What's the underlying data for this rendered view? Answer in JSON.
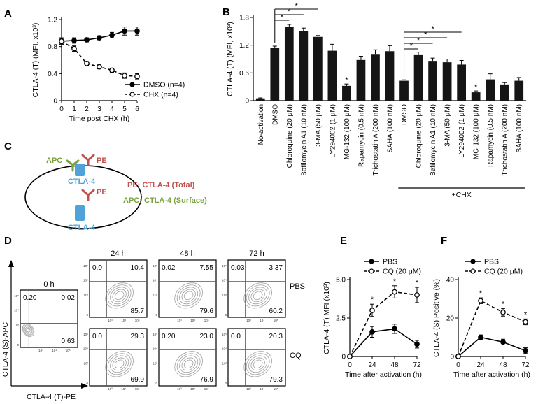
{
  "panels": {
    "A": "A",
    "B": "B",
    "C": "C",
    "D": "D",
    "E": "E",
    "F": "F"
  },
  "colors": {
    "ink": "#000000",
    "bar": "#151515",
    "apc": "#7aa23e",
    "pe": "#c0504d",
    "receptor": "#4fa3d9",
    "contour": "#a0a0a0"
  },
  "chart_data": [
    {
      "id": "A",
      "type": "line",
      "title": "",
      "xlabel": "Time post CHX (h)",
      "ylabel": "CTLA-4 (T) (MFI, x10³)",
      "x": [
        0,
        1,
        2,
        3,
        4,
        5,
        6
      ],
      "xticks": [
        "0",
        "1",
        "2",
        "3",
        "4",
        "5",
        "6"
      ],
      "yticks": [
        "0",
        "0.4",
        "0.8",
        "1.2"
      ],
      "ylim": [
        0,
        1.2
      ],
      "series": [
        {
          "name": "DMSO (n=4)",
          "marker": "filled",
          "dash": false,
          "values": [
            0.88,
            0.89,
            0.9,
            0.93,
            0.97,
            1.03,
            1.03
          ],
          "err": [
            0.05,
            0.04,
            0.03,
            0.03,
            0.04,
            0.06,
            0.06
          ]
        },
        {
          "name": "CHX (n=4)",
          "marker": "open",
          "dash": true,
          "values": [
            0.88,
            0.77,
            0.55,
            0.5,
            0.45,
            0.37,
            0.36
          ],
          "err": [
            0.04,
            0.04,
            0.03,
            0.03,
            0.03,
            0.04,
            0.04
          ]
        }
      ],
      "legend": "bottom-right"
    },
    {
      "id": "B",
      "type": "bar",
      "title": "",
      "ylabel": "CTLA-4 (T) (MFI, x10³)",
      "categories": [
        "No-activation",
        "DMSO",
        "Chloroquine (20 μM)",
        "Bafilomycin A1 (10 nM)",
        "3-MA (50 μM)",
        "LY294002 (1 μM)",
        "MG-132 (100 μM)",
        "Rapamycin (0.5 nM)",
        "Trichostatin A (200 nM)",
        "SAHA (100 nM)",
        "DMSO",
        "Chloroquine (20 μM)",
        "Bafilomycin A1 (10 nM)",
        "3-MA (50 μM)",
        "LY294002 (1 μM)",
        "MG-132 (100 μM)",
        "Rapamycin (0.5 nM)",
        "Trichostatin A (200 nM)",
        "SAHA (100 nM)"
      ],
      "values": [
        0.05,
        1.14,
        1.6,
        1.5,
        1.38,
        1.08,
        0.32,
        0.88,
        1.01,
        1.07,
        0.43,
        1.0,
        0.86,
        0.83,
        0.78,
        0.18,
        0.46,
        0.35,
        0.43
      ],
      "err": [
        0.01,
        0.04,
        0.05,
        0.07,
        0.03,
        0.14,
        0.04,
        0.08,
        0.09,
        0.12,
        0.02,
        0.05,
        0.06,
        0.07,
        0.09,
        0.03,
        0.12,
        0.04,
        0.07
      ],
      "yticks": [
        "0",
        "0.6",
        "1.2",
        "1.8"
      ],
      "ylim": [
        0,
        1.8
      ],
      "star": "*",
      "group_label": "+CHX",
      "group_start": 10
    },
    {
      "id": "E",
      "type": "line",
      "xlabel": "Time after activation (h)",
      "ylabel": "CTLA-4 (T) MFI (x10³)",
      "x": [
        0,
        24,
        48,
        72
      ],
      "xticks": [
        "0",
        "24",
        "48",
        "72"
      ],
      "yticks": [
        "0",
        "2.5",
        "5.0"
      ],
      "ylim": [
        0,
        5
      ],
      "series": [
        {
          "name": "PBS",
          "marker": "filled",
          "dash": false,
          "values": [
            0,
            1.6,
            1.8,
            0.8
          ],
          "err": [
            0,
            0.35,
            0.3,
            0.25
          ]
        },
        {
          "name": "CQ (20 μM)",
          "marker": "open",
          "dash": true,
          "values": [
            0,
            3.0,
            4.2,
            4.0
          ],
          "err": [
            0,
            0.4,
            0.4,
            0.5
          ]
        }
      ],
      "star": "*",
      "legend": "top-left"
    },
    {
      "id": "F",
      "type": "line",
      "xlabel": "Time after activation (h)",
      "ylabel": "CTLA-4 (S) Positive (%)",
      "x": [
        0,
        24,
        48,
        72
      ],
      "xticks": [
        "0",
        "24",
        "48",
        "72"
      ],
      "yticks": [
        "0",
        "20",
        "40"
      ],
      "ylim": [
        0,
        40
      ],
      "series": [
        {
          "name": "PBS",
          "marker": "filled",
          "dash": false,
          "values": [
            0,
            10,
            7.5,
            3
          ],
          "err": [
            0,
            1.2,
            1.5,
            1.5
          ]
        },
        {
          "name": "CQ (20 μM)",
          "marker": "open",
          "dash": true,
          "values": [
            0,
            29,
            23,
            18
          ],
          "err": [
            0,
            1.5,
            2.0,
            1.5
          ]
        }
      ],
      "star": "*",
      "legend": "top-left"
    }
  ],
  "diagram": {
    "apc_label": "APC",
    "pe_label_top": "PE",
    "pe_label_inner": "PE",
    "receptor_label_top": "CTLA-4",
    "receptor_label_inner": "CTLA-4",
    "legend_pe": "PE: CTLA-4 (Total)",
    "legend_apc": "APC: CTLA-4 (Surface)"
  },
  "flow": {
    "y_axis_label": "CTLA-4 (S)-APC",
    "x_axis_label": "CTLA-4 (T)-PE",
    "tick_labels": [
      "10³",
      "10⁴",
      "10⁵"
    ],
    "tick_zero": "0",
    "time_labels": [
      "0 h",
      "24 h",
      "48 h",
      "72 h"
    ],
    "row_labels": [
      "PBS",
      "CQ"
    ],
    "control": {
      "ul": "0.20",
      "ur": "0.02",
      "lr": "0.63"
    },
    "grid": [
      [
        {
          "ul": "0.0",
          "ur": "10.4",
          "lr": "85.7"
        },
        {
          "ul": "0.02",
          "ur": "7.55",
          "lr": "79.6"
        },
        {
          "ul": "0.03",
          "ur": "3.37",
          "lr": "60.2"
        }
      ],
      [
        {
          "ul": "0.0",
          "ur": "29.3",
          "lr": "69.9"
        },
        {
          "ul": "0.20",
          "ur": "23.0",
          "lr": "76.9"
        },
        {
          "ul": "0.0",
          "ur": "20.3",
          "lr": "79.3"
        }
      ]
    ]
  }
}
